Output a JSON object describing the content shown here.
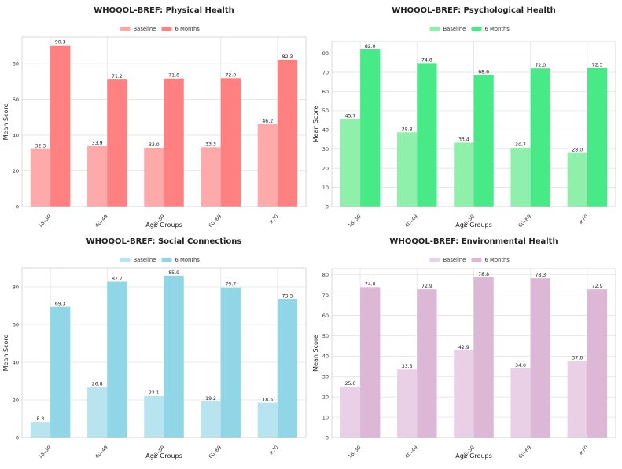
{
  "chart_data": [
    {
      "type": "bar",
      "title": "WHOQOL-BREF: Physical Health",
      "xlabel": "Age Groups",
      "ylabel": "Mean Score",
      "categories": [
        "18–39",
        "40–49",
        "50–59",
        "60–69",
        "≥70"
      ],
      "ylim": [
        0,
        95
      ],
      "yticks": [
        0,
        20,
        40,
        60,
        80
      ],
      "grid": true,
      "legend": "top-center",
      "series": [
        {
          "name": "Baseline",
          "values": [
            32.3,
            33.9,
            33.0,
            33.3,
            46.2
          ],
          "labels": [
            "32.3",
            "33.9",
            "33.0",
            "33.3",
            "46.2"
          ],
          "color": "#ffaaaa"
        },
        {
          "name": "6 Months",
          "values": [
            90.3,
            71.2,
            71.8,
            72.0,
            82.3
          ],
          "labels": [
            "90.3",
            "71.2",
            "71.8",
            "72.0",
            "82.3"
          ],
          "color": "#ff8080"
        }
      ]
    },
    {
      "type": "bar",
      "title": "WHOQOL-BREF: Psychological Health",
      "xlabel": "Age Groups",
      "ylabel": "Mean Score",
      "categories": [
        "18–39",
        "40–49",
        "50–59",
        "60–69",
        "≥70"
      ],
      "ylim": [
        0,
        86
      ],
      "yticks": [
        0,
        10,
        20,
        30,
        40,
        50,
        60,
        70,
        80
      ],
      "grid": true,
      "legend": "top-center",
      "series": [
        {
          "name": "Baseline",
          "values": [
            45.7,
            38.8,
            33.4,
            30.7,
            28.0
          ],
          "labels": [
            "45.7",
            "38.8",
            "33.4",
            "30.7",
            "28.0"
          ],
          "color": "#8ef0aa"
        },
        {
          "name": "6 Months",
          "values": [
            82.0,
            74.8,
            68.6,
            72.0,
            72.3
          ],
          "labels": [
            "82.0",
            "74.8",
            "68.6",
            "72.0",
            "72.3"
          ],
          "color": "#48ea88"
        }
      ]
    },
    {
      "type": "bar",
      "title": "WHOQOL-BREF: Social Connections",
      "xlabel": "Age Groups",
      "ylabel": "Mean Score",
      "categories": [
        "18–39",
        "40–49",
        "50–59",
        "60–69",
        "≥70"
      ],
      "ylim": [
        0,
        90
      ],
      "yticks": [
        0,
        20,
        40,
        60,
        80
      ],
      "grid": true,
      "legend": "top-center",
      "series": [
        {
          "name": "Baseline",
          "values": [
            8.3,
            26.8,
            22.1,
            19.2,
            18.5
          ],
          "labels": [
            "8.3",
            "26.8",
            "22.1",
            "19.2",
            "18.5"
          ],
          "color": "#b8e4f0"
        },
        {
          "name": "6 Months",
          "values": [
            69.3,
            82.7,
            85.9,
            79.7,
            73.5
          ],
          "labels": [
            "69.3",
            "82.7",
            "85.9",
            "79.7",
            "73.5"
          ],
          "color": "#90d6e6"
        }
      ]
    },
    {
      "type": "bar",
      "title": "WHOQOL-BREF: Environmental Health",
      "xlabel": "Age Groups",
      "ylabel": "Mean Score",
      "categories": [
        "18–39",
        "40–49",
        "50–59",
        "60–69",
        "≥70"
      ],
      "ylim": [
        0,
        83
      ],
      "yticks": [
        0,
        10,
        20,
        30,
        40,
        50,
        60,
        70,
        80
      ],
      "grid": true,
      "legend": "top-center",
      "series": [
        {
          "name": "Baseline",
          "values": [
            25.0,
            33.5,
            42.9,
            34.0,
            37.6
          ],
          "labels": [
            "25.0",
            "33.5",
            "42.9",
            "34.0",
            "37.6"
          ],
          "color": "#ead0e6"
        },
        {
          "name": "6 Months",
          "values": [
            74.0,
            72.9,
            78.8,
            78.3,
            72.9
          ],
          "labels": [
            "74.0",
            "72.9",
            "78.8",
            "78.3",
            "72.9"
          ],
          "color": "#dcb8d6"
        }
      ]
    }
  ]
}
